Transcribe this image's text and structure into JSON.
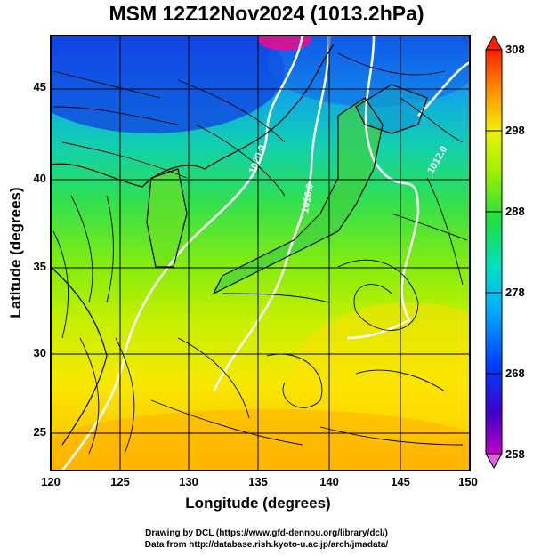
{
  "title": "MSM 12Z12Nov2024 (1013.2hPa)",
  "axes": {
    "x_label": "Longitude (degrees)",
    "y_label": "Latitude  (degrees)",
    "x_ticks": [
      "120",
      "125",
      "130",
      "135",
      "140",
      "145",
      "150"
    ],
    "y_ticks": [
      "45",
      "40",
      "35",
      "30",
      "25"
    ]
  },
  "colorbar": {
    "ticks": [
      "308",
      "298",
      "288",
      "278",
      "268",
      "258"
    ],
    "range": [
      258,
      308
    ]
  },
  "isobar_labels": [
    "1020.0",
    "1016.0",
    "1012.0"
  ],
  "credits": {
    "line1": "Drawing by DCL (https://www.gfd-dennou.org/library/dcl/)",
    "line2": "Data from http://database.rish.kyoto-u.ac.jp/arch/jmadata/"
  },
  "colors": {
    "frame": "#000000",
    "isobar": "#ffffff",
    "streamline": "#000000"
  },
  "chart_data": {
    "type": "heatmap",
    "title": "MSM 12Z12Nov2024 (1013.2hPa)",
    "xlabel": "Longitude (degrees)",
    "ylabel": "Latitude  (degrees)",
    "xlim": [
      120,
      150
    ],
    "ylim": [
      22.4,
      47.6
    ],
    "colorbar_range": [
      258,
      308
    ],
    "colorbar_ticks": [
      258,
      268,
      278,
      288,
      298,
      308
    ]
  }
}
